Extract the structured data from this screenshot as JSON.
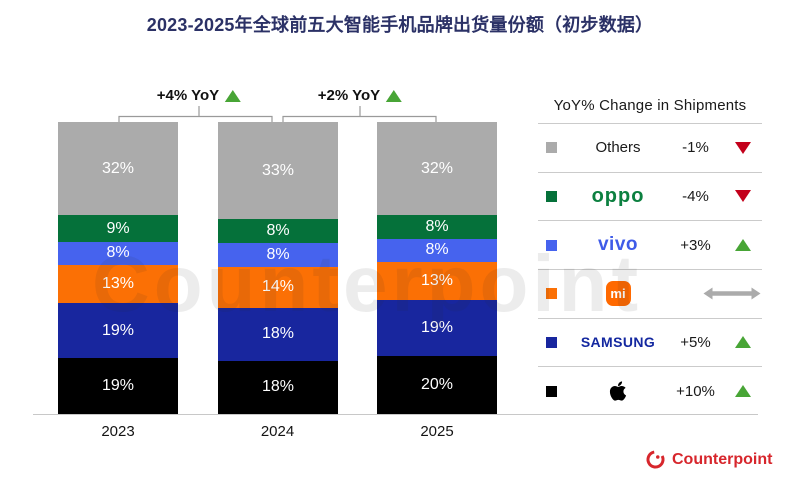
{
  "title": "2023-2025年全球前五大智能手机品牌出货量份额（初步数据）",
  "watermark": "Counterpoint",
  "yoy_annotations": [
    {
      "label": "+4% YoY",
      "direction": "up"
    },
    {
      "label": "+2% YoY",
      "direction": "up"
    }
  ],
  "chart_data": {
    "type": "bar",
    "stacked": true,
    "unit": "%",
    "categories": [
      "2023",
      "2024",
      "2025"
    ],
    "series": [
      {
        "name": "Others",
        "color": "#ABABAB",
        "values": [
          32,
          33,
          32
        ]
      },
      {
        "name": "OPPO",
        "color": "#05713A",
        "values": [
          9,
          8,
          8
        ]
      },
      {
        "name": "vivo",
        "color": "#4663EE",
        "values": [
          8,
          8,
          8
        ]
      },
      {
        "name": "Xiaomi",
        "color": "#FB7005",
        "values": [
          13,
          14,
          13
        ]
      },
      {
        "name": "Samsung",
        "color": "#18269E",
        "values": [
          19,
          18,
          19
        ]
      },
      {
        "name": "Apple",
        "color": "#000000",
        "values": [
          19,
          18,
          20
        ]
      }
    ],
    "annotations": [
      "2023→2024: +4% YoY",
      "2024→2025: +2% YoY"
    ],
    "legend_position": "right",
    "grid": false
  },
  "legend": {
    "header": "YoY% Change in Shipments",
    "rows": [
      {
        "brand": "Others",
        "logo": "others",
        "change": "-1%",
        "trend": "down"
      },
      {
        "brand": "oppo",
        "logo": "oppo",
        "change": "-4%",
        "trend": "down"
      },
      {
        "brand": "vivo",
        "logo": "vivo",
        "change": "+3%",
        "trend": "up"
      },
      {
        "brand": "mi",
        "logo": "xiaomi",
        "change": "",
        "trend": "flat"
      },
      {
        "brand": "SAMSUNG",
        "logo": "samsung",
        "change": "+5%",
        "trend": "up"
      },
      {
        "brand": "Apple",
        "logo": "apple",
        "change": "+10%",
        "trend": "up"
      }
    ]
  },
  "footer": {
    "logo_text": "Counterpoint"
  },
  "colors": {
    "up": "#48A536",
    "down": "#C3001B",
    "flat": "#ABABAB",
    "title": "#2B3166",
    "brand_red": "#D7262C"
  }
}
